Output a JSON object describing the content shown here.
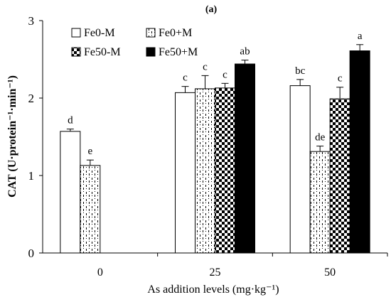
{
  "chart_data": {
    "type": "bar",
    "title": "(a)",
    "xlabel": "As addition levels (mg·kg⁻¹)",
    "ylabel": "CAT (U·protein⁻¹·min⁻¹)",
    "categories": [
      "0",
      "25",
      "50"
    ],
    "ylim": [
      0,
      3
    ],
    "yticks": [
      0,
      1,
      2,
      3
    ],
    "grid": false,
    "legend_position": "top-left",
    "series": [
      {
        "name": "Fe0-M",
        "pattern": "solid-white",
        "values": [
          1.57,
          2.07,
          2.16
        ],
        "errors": [
          0.03,
          0.08,
          0.08
        ],
        "letters": [
          "d",
          "c",
          "bc"
        ]
      },
      {
        "name": "Fe0+M",
        "pattern": "dashed-vertical",
        "values": [
          1.13,
          2.12,
          1.31
        ],
        "errors": [
          0.07,
          0.17,
          0.07
        ],
        "letters": [
          "e",
          "c",
          "de"
        ]
      },
      {
        "name": "Fe50-M",
        "pattern": "checkerboard",
        "values": [
          null,
          2.13,
          1.99
        ],
        "errors": [
          null,
          0.06,
          0.15
        ],
        "letters": [
          "",
          "c",
          "c"
        ]
      },
      {
        "name": "Fe50+M",
        "pattern": "solid-black",
        "values": [
          null,
          2.44,
          2.61
        ],
        "errors": [
          null,
          0.05,
          0.08
        ],
        "letters": [
          "",
          "ab",
          "a"
        ]
      }
    ]
  }
}
